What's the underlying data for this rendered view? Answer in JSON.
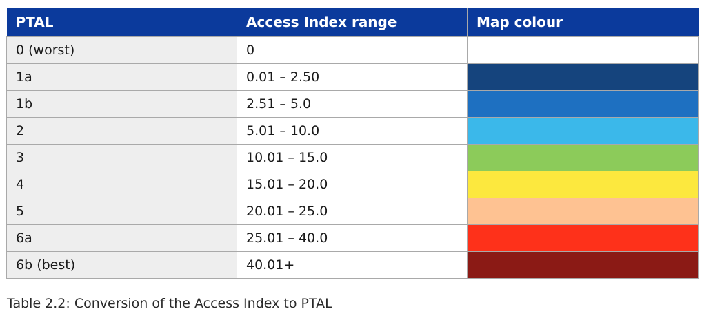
{
  "table": {
    "headers": [
      "PTAL",
      "Access Index range",
      "Map colour"
    ],
    "rows": [
      {
        "ptal": "0 (worst)",
        "range": "0",
        "colour": "#ffffff"
      },
      {
        "ptal": "1a",
        "range": "0.01 – 2.50",
        "colour": "#15447d"
      },
      {
        "ptal": "1b",
        "range": "2.51 – 5.0",
        "colour": "#1e70c1"
      },
      {
        "ptal": "2",
        "range": "5.01 – 10.0",
        "colour": "#3bb8ea"
      },
      {
        "ptal": "3",
        "range": "10.01 – 15.0",
        "colour": "#8ccb5a"
      },
      {
        "ptal": "4",
        "range": "15.01 – 20.0",
        "colour": "#fce83e"
      },
      {
        "ptal": "5",
        "range": "20.01 – 25.0",
        "colour": "#fec292"
      },
      {
        "ptal": "6a",
        "range": "25.01 – 40.0",
        "colour": "#fe311a"
      },
      {
        "ptal": "6b (best)",
        "range": "40.01+",
        "colour": "#8b1a15"
      }
    ]
  },
  "caption": "Table 2.2: Conversion of the Access Index to PTAL",
  "colors": {
    "header_bg": "#0b3a9c",
    "header_text": "#ffffff",
    "level_cell_bg": "#eeeeee",
    "border": "#a9a9a9"
  }
}
